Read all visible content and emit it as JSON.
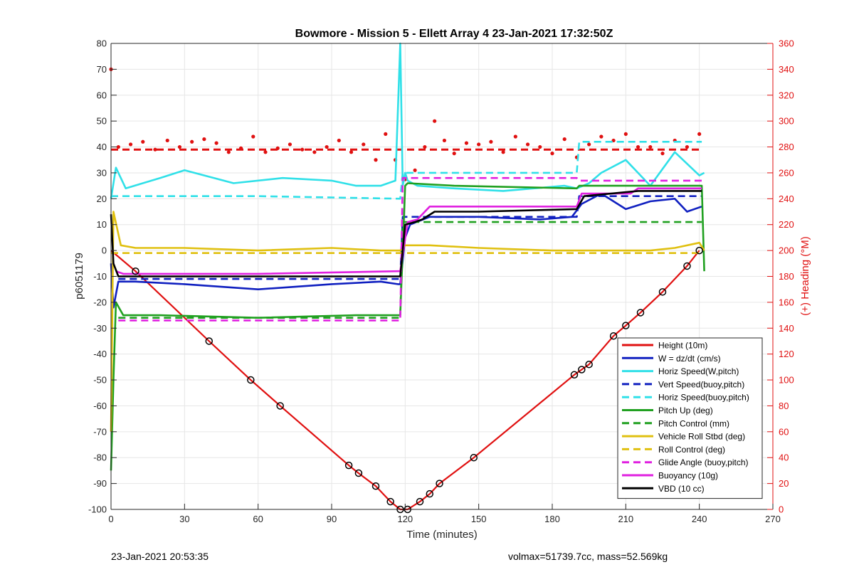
{
  "chart_data": {
    "type": "line",
    "title": "Bowmore - Mission 5 - Ellett Array 4 23-Jan-2021 17:32:50Z",
    "xlabel": "Time (minutes)",
    "ylabel": "p6051179",
    "y2label": "(+) Heading (°M)",
    "xlim": [
      0,
      270
    ],
    "ylim": [
      -100,
      80
    ],
    "y2lim": [
      0,
      360
    ],
    "xticks": [
      0,
      30,
      60,
      90,
      120,
      150,
      180,
      210,
      240,
      270
    ],
    "yticks": [
      -100,
      -90,
      -80,
      -70,
      -60,
      -50,
      -40,
      -30,
      -20,
      -10,
      0,
      10,
      20,
      30,
      40,
      50,
      60,
      70,
      80
    ],
    "y2ticks": [
      0,
      20,
      40,
      60,
      80,
      100,
      120,
      140,
      160,
      180,
      200,
      220,
      240,
      260,
      280,
      300,
      320,
      340,
      360
    ],
    "grid": true,
    "legend_position": "bottom-right",
    "series": [
      {
        "name": "Height (10m)",
        "color": "#e01010",
        "style": "solid",
        "x": [
          0,
          10,
          40,
          57,
          69,
          97,
          101,
          108,
          114,
          118,
          121,
          126,
          130,
          134,
          148,
          189,
          192,
          195,
          205,
          210,
          216,
          225,
          235,
          240
        ],
        "y": [
          0,
          -8,
          -35,
          -50,
          -60,
          -83,
          -86,
          -91,
          -97,
          -100,
          -100,
          -97,
          -94,
          -90,
          -80,
          -48,
          -46,
          -44,
          -33,
          -29,
          -24,
          -16,
          -6,
          0
        ]
      },
      {
        "name": "W = dz/dt (cm/s)",
        "color": "#1020c0",
        "style": "solid",
        "x": [
          0,
          1,
          3,
          10,
          30,
          60,
          90,
          110,
          117,
          118,
          120,
          122,
          130,
          150,
          175,
          188,
          192,
          200,
          210,
          220,
          230,
          235,
          241
        ],
        "y": [
          -5,
          -22,
          -12,
          -12,
          -13,
          -15,
          -13,
          -12,
          -13,
          -13,
          5,
          10,
          13,
          13,
          12,
          13,
          18,
          22,
          16,
          19,
          20,
          15,
          17
        ]
      },
      {
        "name": "Horiz Speed(W,pitch)",
        "color": "#30e0e8",
        "style": "solid",
        "x": [
          0,
          2,
          6,
          20,
          30,
          50,
          70,
          90,
          100,
          110,
          116,
          118,
          119,
          120,
          121,
          125,
          140,
          160,
          185,
          190,
          195,
          200,
          210,
          220,
          230,
          240,
          242
        ],
        "y": [
          20,
          32,
          24,
          28,
          31,
          26,
          28,
          27,
          25,
          25,
          27,
          80,
          25,
          30,
          27,
          25,
          24,
          23,
          25,
          24,
          26,
          30,
          35,
          25,
          38,
          29,
          30
        ]
      },
      {
        "name": "Vert Speed(buoy,pitch)",
        "color": "#1020c0",
        "style": "dashed",
        "x": [
          3,
          60,
          118,
          119,
          150,
          190,
          191,
          241
        ],
        "y": [
          -11,
          -11,
          -11,
          13,
          13,
          13,
          21,
          21
        ]
      },
      {
        "name": "Horiz Speed(buoy,pitch)",
        "color": "#30e0e8",
        "style": "dashed",
        "x": [
          0,
          60,
          118,
          119,
          190,
          191,
          241
        ],
        "y": [
          21,
          21,
          20,
          30,
          30,
          42,
          42
        ]
      },
      {
        "name": "Pitch Up (deg)",
        "color": "#20a020",
        "style": "solid",
        "x": [
          0,
          1,
          2,
          5,
          20,
          60,
          100,
          118,
          120,
          121,
          140,
          190,
          191,
          241,
          242
        ],
        "y": [
          -85,
          -50,
          -20,
          -25,
          -25,
          -26,
          -25,
          -25,
          25,
          26,
          25,
          24,
          25,
          25,
          -8
        ]
      },
      {
        "name": "Pitch Control (mm)",
        "color": "#20a020",
        "style": "dashed",
        "x": [
          3,
          118,
          119,
          190,
          191,
          241
        ],
        "y": [
          -26,
          -26,
          11,
          11,
          11,
          11
        ]
      },
      {
        "name": "Vehicle Roll Stbd (deg)",
        "color": "#e0c010",
        "style": "solid",
        "x": [
          0,
          1,
          4,
          10,
          30,
          60,
          90,
          110,
          118,
          120,
          130,
          150,
          180,
          200,
          220,
          230,
          240,
          242
        ],
        "y": [
          -70,
          15,
          2,
          1,
          1,
          0,
          1,
          0,
          0,
          2,
          2,
          1,
          0,
          0,
          0,
          1,
          3,
          0
        ]
      },
      {
        "name": "Roll Control (deg)",
        "color": "#e0c010",
        "style": "dashed",
        "x": [
          0,
          240
        ],
        "y": [
          -1,
          -1
        ]
      },
      {
        "name": "Glide Angle (buoy,pitch)",
        "color": "#e020e0",
        "style": "dashed",
        "x": [
          3,
          118,
          119,
          190,
          191,
          241
        ],
        "y": [
          -27,
          -27,
          28,
          28,
          27,
          27
        ]
      },
      {
        "name": "Buoyancy (10g)",
        "color": "#e020e0",
        "style": "solid",
        "x": [
          2,
          5,
          60,
          117,
          118,
          121,
          125,
          130,
          190,
          192,
          212,
          215,
          241
        ],
        "y": [
          -8,
          -9,
          -9,
          -8,
          -8,
          11,
          12,
          17,
          17,
          22,
          22,
          24,
          24
        ]
      },
      {
        "name": "VBD (10 cc)",
        "color": "#000000",
        "style": "solid",
        "x": [
          0,
          1,
          3,
          60,
          118,
          120,
          124,
          127,
          132,
          140,
          150,
          190,
          193,
          215,
          241
        ],
        "y": [
          14,
          -5,
          -10,
          -10,
          -10,
          10,
          11,
          12,
          15,
          15,
          15,
          16,
          21,
          23,
          23
        ]
      }
    ],
    "heading_series": {
      "name": "Heading",
      "color": "#e01010",
      "x": [
        0,
        3,
        8,
        13,
        18,
        23,
        28,
        33,
        38,
        43,
        48,
        53,
        58,
        63,
        68,
        73,
        78,
        83,
        88,
        93,
        98,
        103,
        108,
        112,
        116,
        120,
        124,
        128,
        132,
        136,
        140,
        145,
        150,
        155,
        160,
        165,
        170,
        175,
        180,
        185,
        190,
        195,
        200,
        205,
        210,
        215,
        220,
        225,
        230,
        235,
        240
      ],
      "y": [
        340,
        280,
        282,
        284,
        278,
        285,
        280,
        284,
        286,
        283,
        276,
        279,
        288,
        276,
        279,
        282,
        278,
        276,
        280,
        285,
        276,
        282,
        270,
        290,
        270,
        255,
        262,
        280,
        300,
        285,
        275,
        283,
        282,
        284,
        276,
        288,
        282,
        280,
        275,
        286,
        272,
        282,
        288,
        285,
        290,
        280,
        280,
        275,
        285,
        280,
        290
      ]
    },
    "heading_mean": {
      "color": "#e01010",
      "style": "dashed",
      "y": 278
    }
  },
  "footer": {
    "timestamp": "23-Jan-2021 20:53:35",
    "info": "volmax=51739.7cc, mass=52.569kg"
  }
}
